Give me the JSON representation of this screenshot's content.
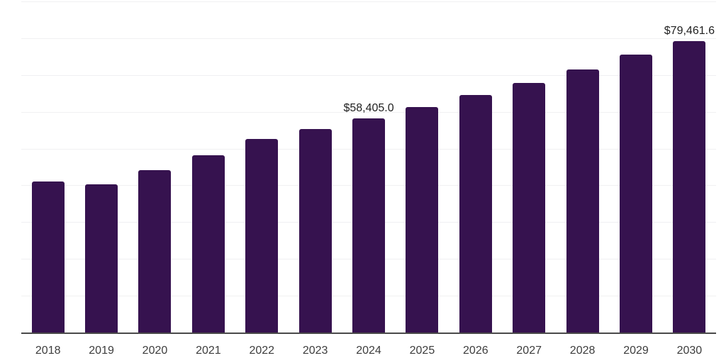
{
  "chart_data": {
    "type": "bar",
    "title": "",
    "xlabel": "",
    "ylabel": "",
    "categories": [
      "2018",
      "2019",
      "2020",
      "2021",
      "2022",
      "2023",
      "2024",
      "2025",
      "2026",
      "2027",
      "2028",
      "2029",
      "2030"
    ],
    "values": [
      41200,
      40500,
      44300,
      48300,
      52900,
      55600,
      58405.0,
      61500,
      64700,
      68100,
      71700,
      75700,
      79461.6
    ],
    "data_labels": {
      "2024": "$58,405.0",
      "2030": "$79,461.6"
    },
    "ylim": [
      0,
      90000
    ],
    "gridline_interval": 10000,
    "grid": "horizontal-light",
    "legend": "none",
    "bar_color": "#36124f",
    "gridline_color": "#f0f0f2",
    "axis_line_color": "#4a4a4a",
    "tick_label_color": "#3d3d3d",
    "data_label_color": "#1f1f1f"
  }
}
